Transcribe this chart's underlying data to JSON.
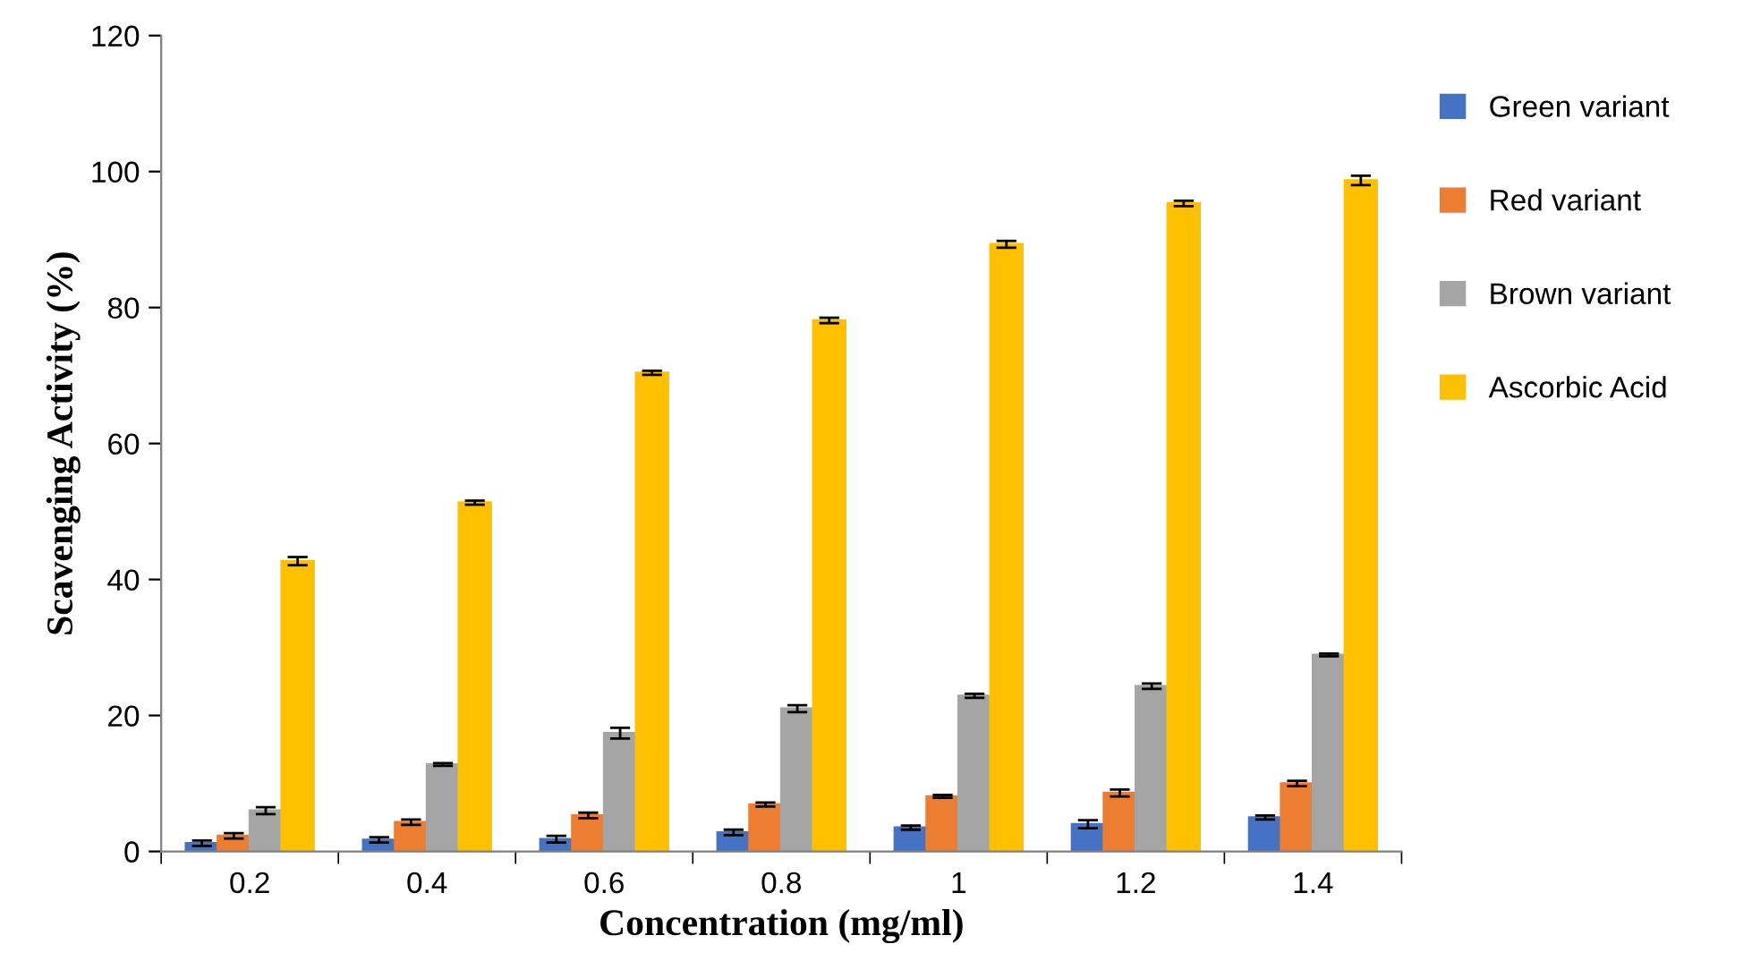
{
  "chart_data": {
    "type": "bar",
    "xlabel": "Concentration (mg/ml)",
    "ylabel": "Scavenging Activity (%)",
    "categories": [
      "0.2",
      "0.4",
      "0.6",
      "0.8",
      "1",
      "1.2",
      "1.4"
    ],
    "series": [
      {
        "name": "Green variant",
        "color": "#4472c4",
        "values": [
          1.2,
          1.7,
          1.8,
          2.8,
          3.5,
          4.0,
          5.0
        ],
        "errors": [
          0.4,
          0.4,
          0.5,
          0.4,
          0.3,
          0.6,
          0.3
        ]
      },
      {
        "name": "Red variant",
        "color": "#ed7d31",
        "values": [
          2.3,
          4.3,
          5.3,
          6.9,
          8.1,
          8.6,
          10.0
        ],
        "errors": [
          0.4,
          0.4,
          0.4,
          0.3,
          0.2,
          0.5,
          0.4
        ]
      },
      {
        "name": "Brown variant",
        "color": "#a5a5a5",
        "values": [
          6.0,
          12.8,
          17.4,
          21.0,
          22.9,
          24.3,
          28.9
        ],
        "errors": [
          0.5,
          0.2,
          0.8,
          0.5,
          0.3,
          0.4,
          0.2
        ]
      },
      {
        "name": "Ascorbic Acid",
        "color": "#ffc000",
        "values": [
          42.7,
          51.3,
          70.4,
          78.1,
          89.3,
          95.3,
          98.7
        ],
        "errors": [
          0.6,
          0.3,
          0.3,
          0.4,
          0.5,
          0.4,
          0.7
        ]
      }
    ],
    "ylim": [
      0,
      120
    ],
    "yticks": [
      0,
      20,
      40,
      60,
      80,
      100,
      120
    ],
    "grid": false,
    "legend": "right"
  }
}
